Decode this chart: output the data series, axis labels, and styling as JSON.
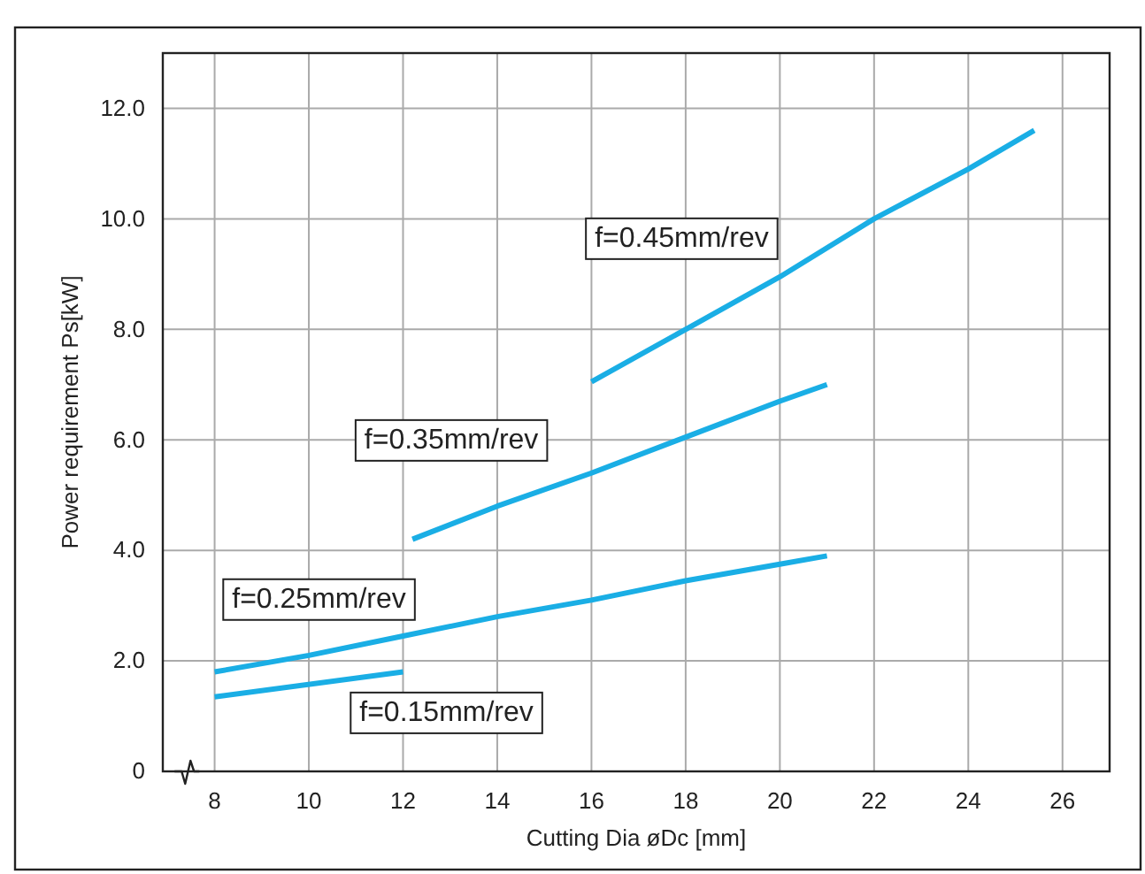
{
  "chart_data": {
    "type": "line",
    "xlabel": "Cutting Dia øDc [mm]",
    "ylabel": "Power requirement Ps[kW]",
    "xlim": [
      6.9,
      27
    ],
    "xticks": [
      8,
      10,
      12,
      14,
      16,
      18,
      20,
      22,
      24,
      26
    ],
    "ylim": [
      0,
      13
    ],
    "yticks": [
      0,
      {
        "value": 2,
        "label": "2.0"
      },
      {
        "value": 4,
        "label": "4.0"
      },
      {
        "value": 6,
        "label": "6.0"
      },
      {
        "value": 8,
        "label": "8.0"
      },
      {
        "value": 10,
        "label": "10.0"
      },
      {
        "value": 12,
        "label": "12.0"
      }
    ],
    "grid": true,
    "line_style": "solid",
    "marker": "none",
    "series": [
      {
        "name": "f=0.15mm/rev",
        "color": "#1aaee5",
        "x": [
          8,
          12
        ],
        "values": [
          1.35,
          1.8
        ]
      },
      {
        "name": "f=0.25mm/rev",
        "color": "#1aaee5",
        "x": [
          8,
          10,
          12,
          14,
          16,
          18,
          20,
          21
        ],
        "values": [
          1.8,
          2.1,
          2.45,
          2.8,
          3.1,
          3.45,
          3.75,
          3.9
        ]
      },
      {
        "name": "f=0.35mm/rev",
        "color": "#1aaee5",
        "x": [
          12.2,
          14,
          16,
          18,
          20,
          21
        ],
        "values": [
          4.2,
          4.8,
          5.4,
          6.05,
          6.7,
          7.0
        ]
      },
      {
        "name": "f=0.45mm/rev",
        "color": "#1aaee5",
        "x": [
          16,
          18,
          20,
          22,
          24,
          25.4
        ],
        "values": [
          7.05,
          8.0,
          8.95,
          10.0,
          10.9,
          11.6
        ]
      }
    ]
  }
}
